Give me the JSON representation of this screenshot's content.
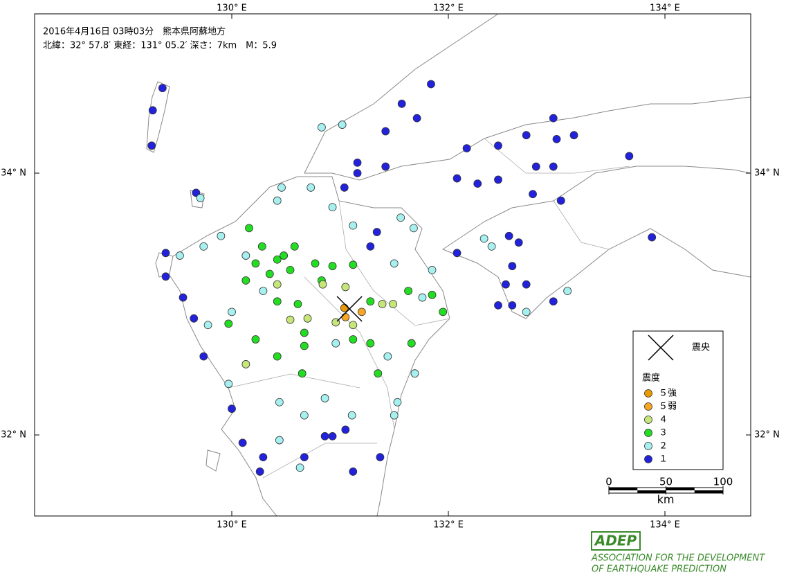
{
  "header": {
    "title": "2016年4月16日 03時03分　熊本県阿蘇地方",
    "subtitle": "北緯：32° 57.8′ 東経：131° 05.2′ 深さ：7km　M：5.9"
  },
  "map": {
    "lon_ticks": [
      {
        "value": 130,
        "label": "130° E"
      },
      {
        "value": 132,
        "label": "132° E"
      },
      {
        "value": 134,
        "label": "134° E"
      }
    ],
    "lat_ticks": [
      {
        "value": 34,
        "label": "34° N"
      },
      {
        "value": 32,
        "label": "32° N"
      }
    ],
    "epicenter": {
      "lon": 131.087,
      "lat": 32.963
    }
  },
  "legend": {
    "epicenter_label": "震央",
    "intensity_title": "震度",
    "classes": [
      {
        "label": "５強",
        "color": "#e89a00",
        "stations": [
          [
            131.04,
            32.97
          ]
        ]
      },
      {
        "label": "５弱",
        "color": "#f5a623",
        "stations": [
          [
            131.05,
            32.9
          ],
          [
            131.2,
            32.94
          ]
        ]
      },
      {
        "label": "４",
        "color": "#c6e67a",
        "stations": [
          [
            130.84,
            33.15
          ],
          [
            131.05,
            33.13
          ],
          [
            130.96,
            32.86
          ],
          [
            131.12,
            32.84
          ],
          [
            130.7,
            32.89
          ],
          [
            130.54,
            32.88
          ],
          [
            130.42,
            33.15
          ],
          [
            131.39,
            33.0
          ],
          [
            131.49,
            33.0
          ],
          [
            130.13,
            32.54
          ]
        ]
      },
      {
        "label": "３",
        "color": "#22dd22",
        "stations": [
          [
            130.16,
            33.58
          ],
          [
            130.28,
            33.44
          ],
          [
            130.42,
            33.34
          ],
          [
            130.48,
            33.37
          ],
          [
            130.35,
            33.23
          ],
          [
            130.13,
            33.18
          ],
          [
            130.58,
            33.44
          ],
          [
            130.77,
            33.31
          ],
          [
            130.93,
            33.29
          ],
          [
            131.12,
            33.3
          ],
          [
            130.42,
            33.02
          ],
          [
            130.61,
            33.0
          ],
          [
            130.67,
            32.78
          ],
          [
            130.67,
            32.68
          ],
          [
            130.42,
            32.6
          ],
          [
            130.22,
            32.73
          ],
          [
            129.97,
            32.85
          ],
          [
            131.28,
            33.02
          ],
          [
            131.63,
            33.1
          ],
          [
            131.85,
            33.07
          ],
          [
            131.95,
            32.94
          ],
          [
            131.12,
            32.73
          ],
          [
            131.28,
            32.7
          ],
          [
            131.66,
            32.7
          ],
          [
            131.35,
            32.47
          ],
          [
            130.65,
            32.47
          ],
          [
            130.83,
            33.18
          ],
          [
            130.22,
            33.31
          ],
          [
            130.54,
            33.26
          ]
        ]
      },
      {
        "label": "２",
        "color": "#a6f0f0",
        "stations": [
          [
            130.83,
            34.35
          ],
          [
            131.02,
            34.37
          ],
          [
            130.46,
            33.89
          ],
          [
            130.73,
            33.89
          ],
          [
            130.42,
            33.79
          ],
          [
            130.93,
            33.74
          ],
          [
            129.9,
            33.52
          ],
          [
            129.74,
            33.44
          ],
          [
            129.52,
            33.37
          ],
          [
            129.71,
            33.81
          ],
          [
            131.12,
            33.6
          ],
          [
            131.56,
            33.66
          ],
          [
            131.68,
            33.58
          ],
          [
            131.5,
            33.31
          ],
          [
            131.85,
            33.26
          ],
          [
            131.76,
            33.05
          ],
          [
            130.96,
            32.7
          ],
          [
            131.44,
            32.6
          ],
          [
            131.69,
            32.47
          ],
          [
            131.53,
            32.25
          ],
          [
            131.5,
            32.15
          ],
          [
            129.97,
            32.39
          ],
          [
            130.44,
            32.25
          ],
          [
            130.86,
            32.28
          ],
          [
            130.67,
            32.15
          ],
          [
            130.44,
            31.96
          ],
          [
            130.63,
            31.75
          ],
          [
            131.11,
            32.15
          ],
          [
            132.33,
            33.5
          ],
          [
            132.4,
            33.44
          ],
          [
            132.72,
            32.94
          ],
          [
            133.1,
            33.1
          ],
          [
            130.13,
            33.37
          ],
          [
            130.29,
            33.1
          ],
          [
            130.0,
            32.94
          ],
          [
            129.78,
            32.84
          ]
        ]
      },
      {
        "label": "１",
        "color": "#2222dd",
        "stations": [
          [
            129.36,
            34.65
          ],
          [
            129.27,
            34.48
          ],
          [
            129.26,
            34.21
          ],
          [
            129.67,
            33.85
          ],
          [
            129.39,
            33.39
          ],
          [
            129.39,
            33.21
          ],
          [
            129.55,
            33.05
          ],
          [
            129.65,
            32.89
          ],
          [
            129.74,
            32.6
          ],
          [
            130.0,
            32.2
          ],
          [
            130.1,
            31.94
          ],
          [
            130.29,
            31.83
          ],
          [
            130.26,
            31.72
          ],
          [
            130.93,
            31.99
          ],
          [
            131.12,
            31.72
          ],
          [
            131.37,
            31.83
          ],
          [
            131.04,
            33.89
          ],
          [
            131.16,
            34.08
          ],
          [
            131.42,
            34.32
          ],
          [
            131.57,
            34.53
          ],
          [
            131.84,
            34.68
          ],
          [
            131.71,
            34.42
          ],
          [
            131.16,
            34.0
          ],
          [
            131.42,
            34.05
          ],
          [
            132.08,
            33.96
          ],
          [
            132.27,
            33.92
          ],
          [
            132.46,
            33.95
          ],
          [
            132.17,
            34.19
          ],
          [
            132.46,
            34.21
          ],
          [
            132.72,
            34.29
          ],
          [
            132.97,
            34.42
          ],
          [
            133.16,
            34.29
          ],
          [
            133.0,
            34.26
          ],
          [
            133.67,
            34.13
          ],
          [
            132.81,
            34.05
          ],
          [
            132.97,
            34.05
          ],
          [
            132.78,
            33.84
          ],
          [
            133.04,
            33.79
          ],
          [
            132.56,
            33.52
          ],
          [
            132.65,
            33.47
          ],
          [
            132.59,
            33.29
          ],
          [
            132.72,
            33.15
          ],
          [
            132.53,
            33.15
          ],
          [
            132.46,
            32.99
          ],
          [
            132.59,
            32.99
          ],
          [
            132.97,
            33.02
          ],
          [
            133.88,
            33.51
          ],
          [
            132.08,
            33.39
          ],
          [
            131.34,
            33.55
          ],
          [
            131.28,
            33.44
          ],
          [
            130.86,
            31.99
          ],
          [
            130.67,
            31.83
          ],
          [
            131.05,
            32.04
          ]
        ]
      }
    ]
  },
  "scale": {
    "ticks": [
      0,
      50,
      100
    ],
    "unit": "km"
  },
  "logo": {
    "mark": "ADEP",
    "line1": "ASSOCIATION FOR THE DEVELOPMENT",
    "line2": "OF EARTHQUAKE PREDICTION"
  }
}
